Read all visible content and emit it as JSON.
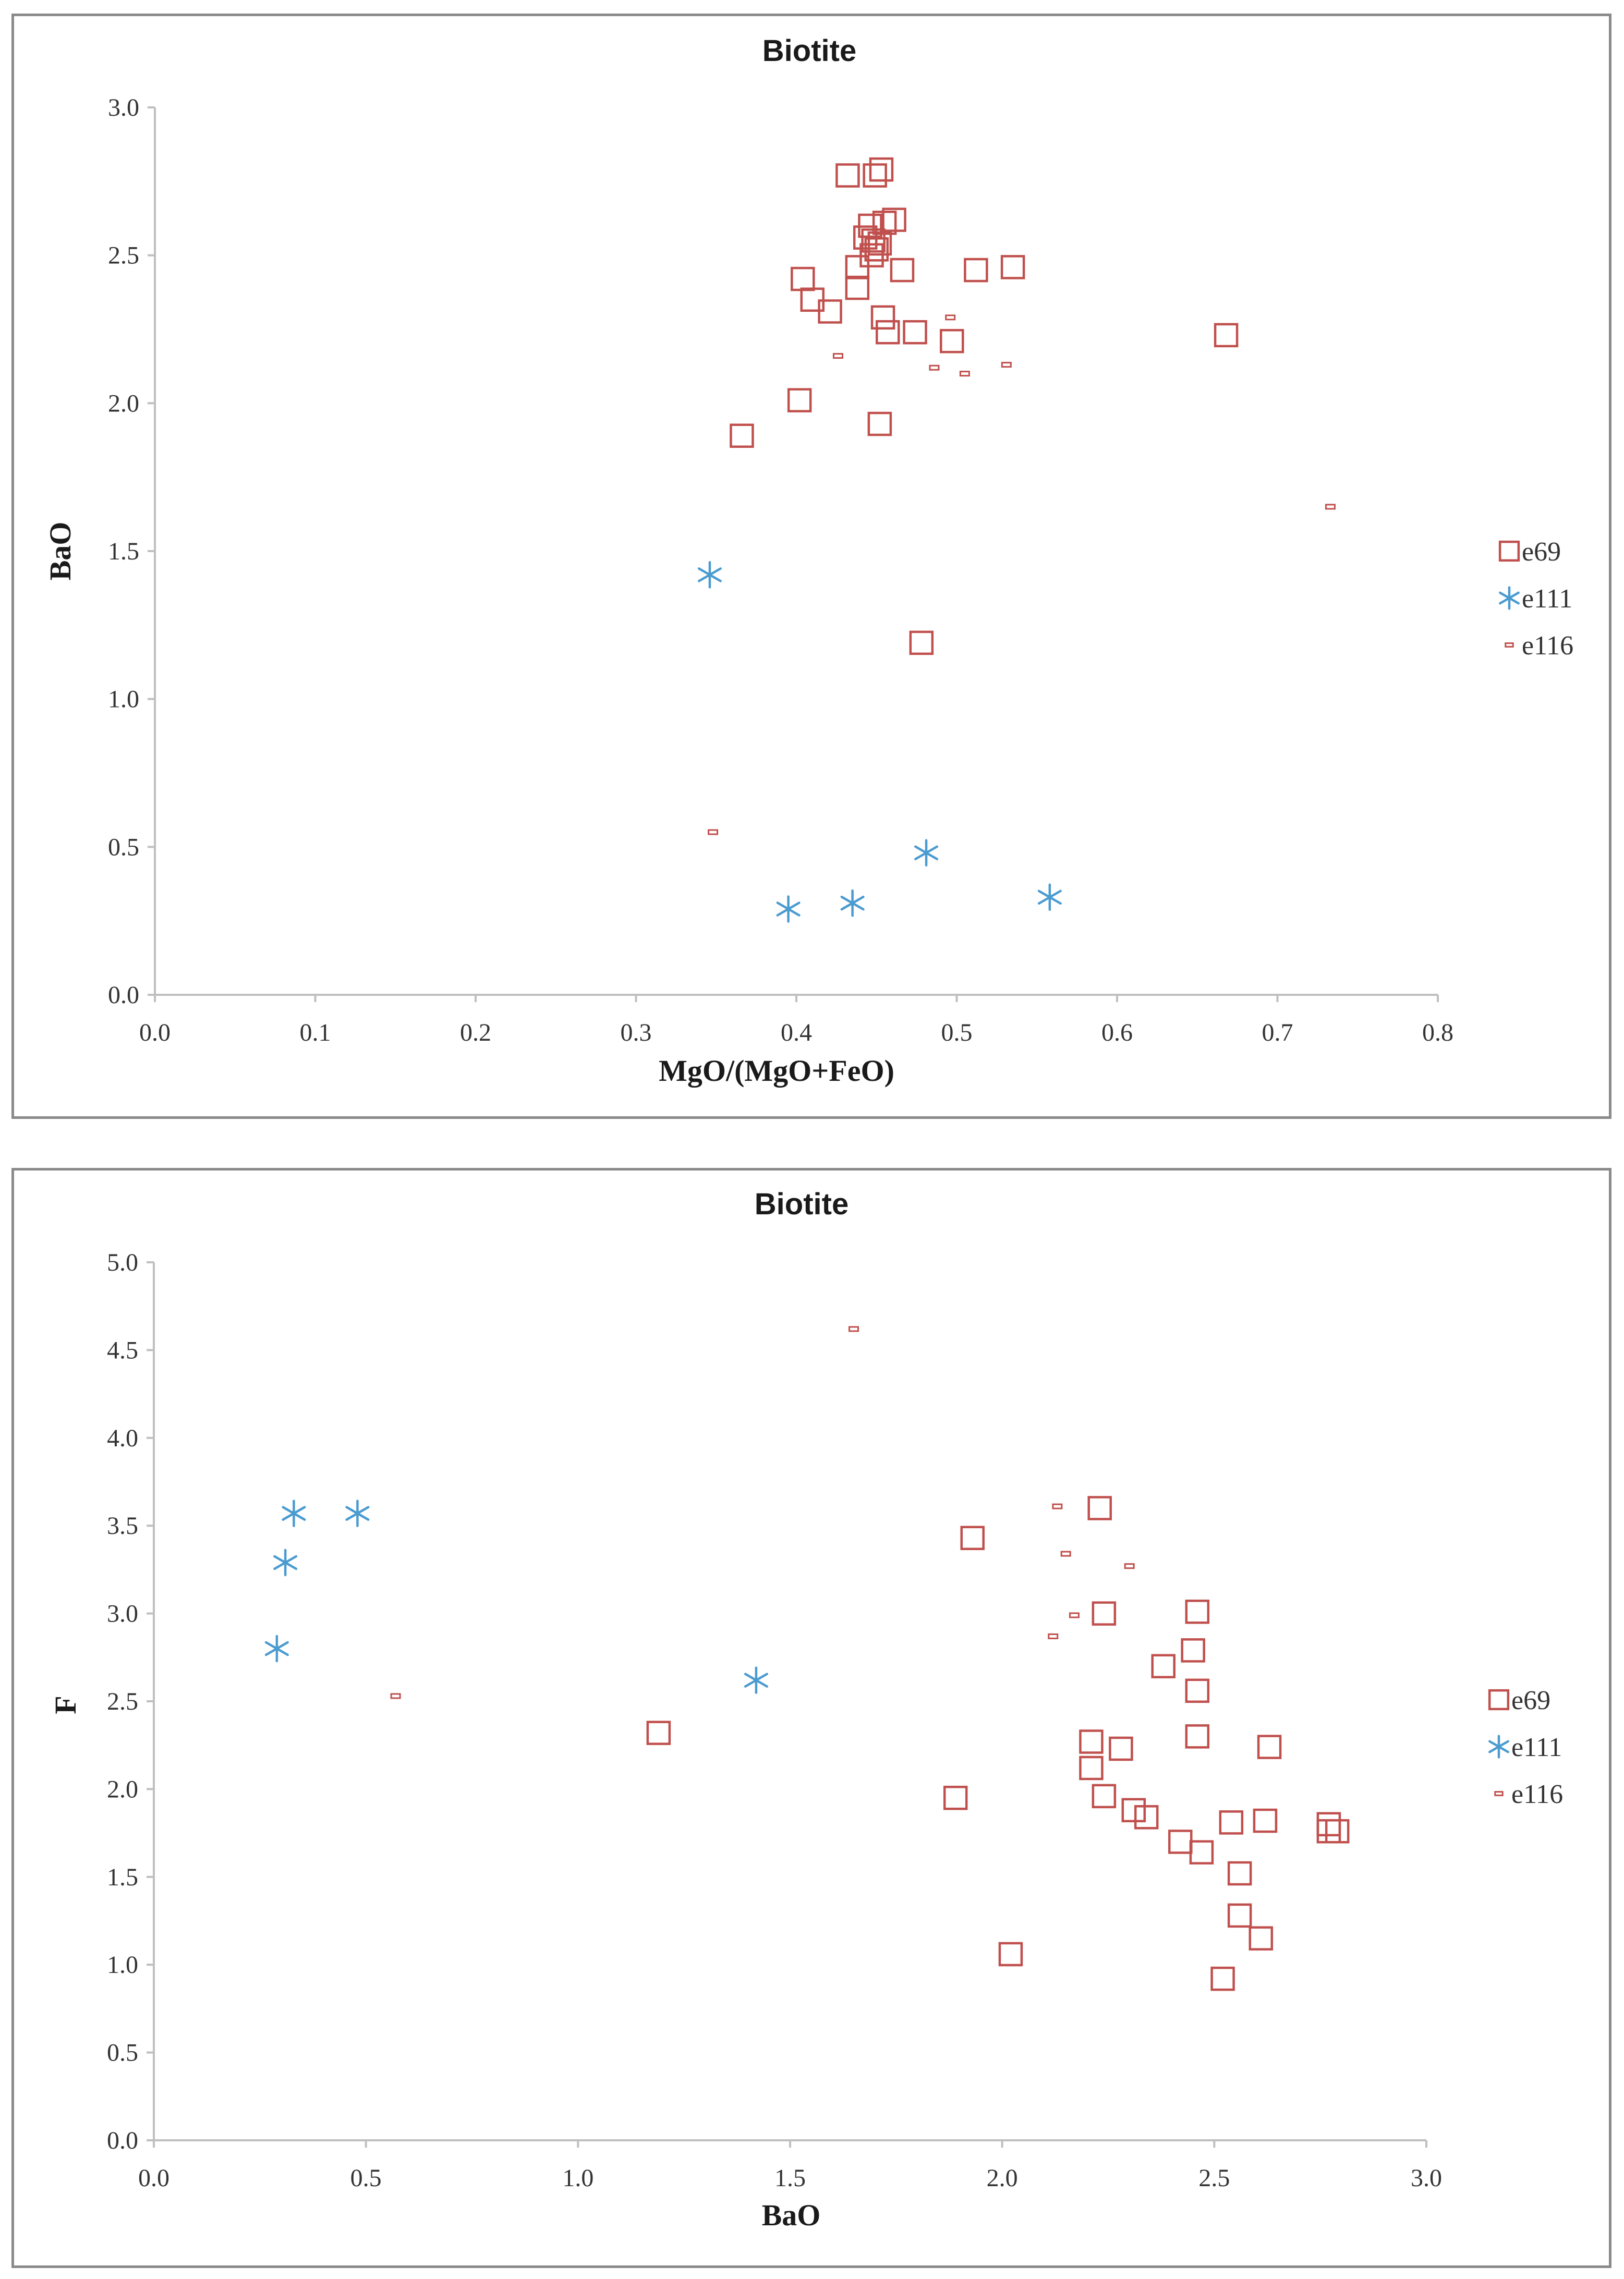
{
  "chart_data": [
    {
      "type": "scatter",
      "title": "Biotite",
      "xlabel": "MgO/(MgO+FeO)",
      "ylabel": "BaO",
      "xlim": [
        0.0,
        0.8
      ],
      "ylim": [
        0.0,
        3.0
      ],
      "xticks": [
        "0.0",
        "0.1",
        "0.2",
        "0.3",
        "0.4",
        "0.5",
        "0.6",
        "0.7",
        "0.8"
      ],
      "yticks": [
        "0.0",
        "0.5",
        "1.0",
        "1.5",
        "2.0",
        "2.5",
        "3.0"
      ],
      "legend_position": "right",
      "series": [
        {
          "name": "e69",
          "marker": "square",
          "color": "#c0504d",
          "x": [
            0.432,
            0.449,
            0.453,
            0.438,
            0.446,
            0.455,
            0.448,
            0.45,
            0.443,
            0.461,
            0.466,
            0.452,
            0.447,
            0.404,
            0.41,
            0.421,
            0.438,
            0.512,
            0.535,
            0.454,
            0.457,
            0.474,
            0.497,
            0.668,
            0.402,
            0.366,
            0.452,
            0.478
          ],
          "y": [
            2.77,
            2.77,
            2.79,
            2.46,
            2.6,
            2.61,
            2.55,
            2.52,
            2.56,
            2.62,
            2.45,
            2.54,
            2.5,
            2.42,
            2.35,
            2.31,
            2.39,
            2.45,
            2.46,
            2.29,
            2.24,
            2.24,
            2.21,
            2.23,
            2.01,
            1.89,
            1.93,
            1.19
          ]
        },
        {
          "name": "e111",
          "marker": "asterisk",
          "color": "#4a9bd0",
          "x": [
            0.346,
            0.395,
            0.435,
            0.481,
            0.558
          ],
          "y": [
            1.42,
            0.29,
            0.31,
            0.48,
            0.33
          ]
        },
        {
          "name": "e116",
          "marker": "dash",
          "color": "#c0504d",
          "x": [
            0.496,
            0.426,
            0.486,
            0.505,
            0.531,
            0.733,
            0.348
          ],
          "y": [
            2.29,
            2.16,
            2.12,
            2.1,
            2.13,
            1.65,
            0.55
          ]
        }
      ]
    },
    {
      "type": "scatter",
      "title": "Biotite",
      "xlabel": "BaO",
      "ylabel": "F",
      "xlim": [
        0.0,
        3.0
      ],
      "ylim": [
        0.0,
        5.0
      ],
      "xticks": [
        "0.0",
        "0.5",
        "1.0",
        "1.5",
        "2.0",
        "2.5",
        "3.0"
      ],
      "yticks": [
        "0.0",
        "0.5",
        "1.0",
        "1.5",
        "2.0",
        "2.5",
        "3.0",
        "3.5",
        "4.0",
        "4.5",
        "5.0"
      ],
      "legend_position": "right",
      "series": [
        {
          "name": "e69",
          "marker": "square",
          "color": "#c0504d",
          "x": [
            2.23,
            1.93,
            2.24,
            2.46,
            2.45,
            2.38,
            2.46,
            2.46,
            2.21,
            2.28,
            2.63,
            2.21,
            2.24,
            1.89,
            2.31,
            2.34,
            2.54,
            2.62,
            2.77,
            2.77,
            2.79,
            2.42,
            2.47,
            2.56,
            2.56,
            2.61,
            2.02,
            2.52,
            1.19
          ],
          "y": [
            3.6,
            3.43,
            3.0,
            3.01,
            2.79,
            2.7,
            2.56,
            2.3,
            2.27,
            2.23,
            2.24,
            2.12,
            1.96,
            1.95,
            1.88,
            1.84,
            1.81,
            1.82,
            1.8,
            1.76,
            1.76,
            1.7,
            1.64,
            1.52,
            1.28,
            1.15,
            1.06,
            0.92,
            2.32
          ]
        },
        {
          "name": "e111",
          "marker": "asterisk",
          "color": "#4a9bd0",
          "x": [
            0.33,
            0.48,
            0.31,
            0.29,
            1.42
          ],
          "y": [
            3.57,
            3.57,
            3.29,
            2.8,
            2.62
          ]
        },
        {
          "name": "e116",
          "marker": "dash",
          "color": "#c0504d",
          "x": [
            1.65,
            2.13,
            2.15,
            2.3,
            2.17,
            2.12,
            0.57
          ],
          "y": [
            4.62,
            3.61,
            3.34,
            3.27,
            2.99,
            2.87,
            2.53
          ]
        }
      ]
    }
  ]
}
